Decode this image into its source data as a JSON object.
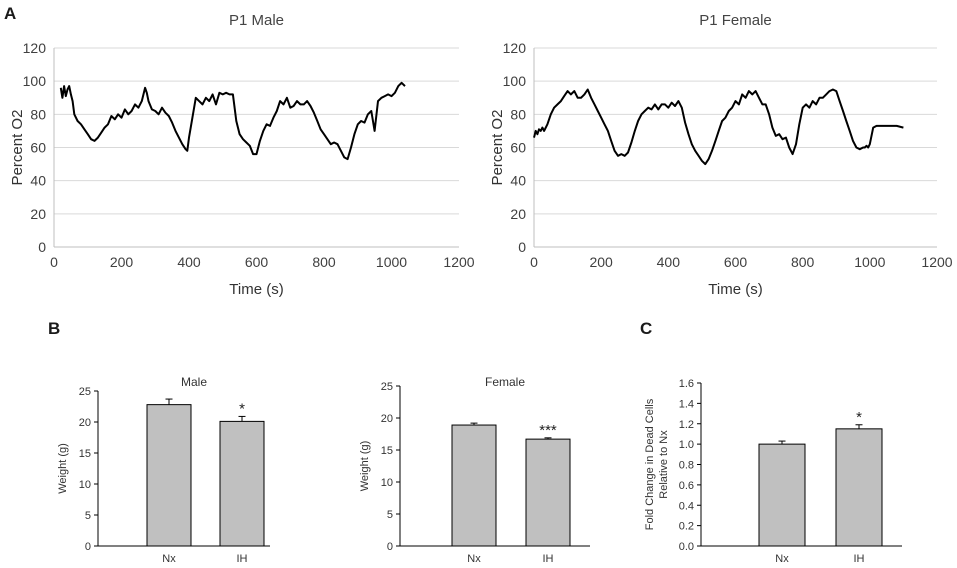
{
  "panels": {
    "A": "A",
    "B": "B",
    "C": "C"
  },
  "chart_data": [
    {
      "id": "p1-male",
      "type": "line",
      "title": "P1 Male",
      "xlabel": "Time (s)",
      "ylabel": "Percent O2",
      "xlim": [
        0,
        1200
      ],
      "ylim": [
        0,
        120
      ],
      "xticks": [
        0,
        200,
        400,
        600,
        800,
        1000,
        1200
      ],
      "yticks": [
        0,
        20,
        40,
        60,
        80,
        100,
        120
      ],
      "grid": true,
      "series": [
        {
          "name": "Percent O2",
          "x": [
            20,
            25,
            30,
            35,
            40,
            45,
            50,
            55,
            60,
            70,
            80,
            90,
            100,
            110,
            120,
            130,
            140,
            150,
            160,
            170,
            180,
            190,
            200,
            210,
            220,
            230,
            240,
            250,
            260,
            270,
            275,
            280,
            290,
            300,
            310,
            320,
            330,
            340,
            350,
            360,
            370,
            380,
            390,
            395,
            400,
            410,
            420,
            430,
            440,
            450,
            460,
            470,
            480,
            490,
            500,
            510,
            520,
            530,
            540,
            550,
            560,
            570,
            580,
            590,
            600,
            610,
            620,
            630,
            640,
            650,
            660,
            670,
            680,
            690,
            700,
            710,
            720,
            730,
            740,
            750,
            760,
            770,
            780,
            790,
            800,
            810,
            820,
            830,
            840,
            850,
            860,
            870,
            880,
            890,
            900,
            910,
            920,
            930,
            940,
            950,
            960,
            970,
            980,
            990,
            1000,
            1010,
            1020,
            1030,
            1040
          ],
          "y": [
            96,
            90,
            97,
            91,
            95,
            97,
            92,
            88,
            80,
            76,
            74,
            71,
            68,
            65,
            64,
            66,
            69,
            72,
            74,
            79,
            77,
            80,
            78,
            83,
            80,
            82,
            86,
            84,
            88,
            96,
            93,
            88,
            83,
            82,
            80,
            84,
            81,
            79,
            75,
            70,
            66,
            62,
            59,
            58,
            66,
            78,
            90,
            88,
            86,
            90,
            88,
            92,
            86,
            93,
            92,
            93,
            92,
            92,
            76,
            68,
            65,
            63,
            61,
            56,
            56,
            64,
            70,
            74,
            73,
            78,
            82,
            88,
            86,
            90,
            84,
            85,
            88,
            86,
            86,
            88,
            85,
            81,
            76,
            71,
            68,
            65,
            62,
            63,
            62,
            58,
            54,
            53,
            60,
            68,
            74,
            76,
            75,
            80,
            82,
            70,
            88,
            90,
            91,
            92,
            91,
            93,
            97,
            99,
            97
          ]
        }
      ]
    },
    {
      "id": "p1-female",
      "type": "line",
      "title": "P1 Female",
      "xlabel": "Time (s)",
      "ylabel": "Percent O2",
      "xlim": [
        0,
        1200
      ],
      "ylim": [
        0,
        120
      ],
      "xticks": [
        0,
        200,
        400,
        600,
        800,
        1000,
        1200
      ],
      "yticks": [
        0,
        20,
        40,
        60,
        80,
        100,
        120
      ],
      "grid": true,
      "series": [
        {
          "name": "Percent O2",
          "x": [
            0,
            5,
            10,
            15,
            20,
            25,
            30,
            40,
            50,
            60,
            70,
            80,
            90,
            100,
            110,
            120,
            130,
            140,
            150,
            160,
            170,
            180,
            190,
            200,
            210,
            220,
            230,
            240,
            250,
            260,
            270,
            280,
            290,
            300,
            310,
            320,
            330,
            340,
            350,
            360,
            370,
            380,
            390,
            400,
            410,
            420,
            430,
            440,
            450,
            460,
            470,
            480,
            490,
            500,
            510,
            520,
            530,
            540,
            550,
            560,
            570,
            580,
            590,
            600,
            610,
            620,
            630,
            640,
            650,
            660,
            670,
            680,
            690,
            700,
            710,
            720,
            730,
            740,
            750,
            760,
            770,
            780,
            790,
            800,
            810,
            820,
            830,
            840,
            850,
            860,
            870,
            880,
            890,
            900,
            910,
            920,
            930,
            940,
            950,
            960,
            970,
            980,
            985,
            990,
            995,
            1000,
            1010,
            1020,
            1050,
            1080,
            1100
          ],
          "y": [
            66,
            70,
            68,
            71,
            70,
            72,
            70,
            74,
            80,
            84,
            86,
            88,
            91,
            94,
            92,
            94,
            90,
            90,
            92,
            95,
            90,
            86,
            82,
            78,
            74,
            70,
            64,
            58,
            55,
            56,
            55,
            57,
            63,
            70,
            76,
            80,
            82,
            84,
            83,
            86,
            83,
            86,
            86,
            84,
            87,
            85,
            88,
            84,
            75,
            68,
            62,
            58,
            55,
            52,
            50,
            53,
            58,
            64,
            70,
            76,
            78,
            82,
            84,
            88,
            86,
            92,
            90,
            94,
            92,
            94,
            90,
            86,
            86,
            80,
            72,
            67,
            68,
            65,
            66,
            60,
            56,
            62,
            74,
            84,
            86,
            84,
            88,
            86,
            90,
            90,
            92,
            94,
            95,
            94,
            88,
            82,
            76,
            70,
            64,
            60,
            59,
            60,
            60,
            61,
            60,
            62,
            72,
            73,
            73,
            73,
            72
          ]
        }
      ]
    },
    {
      "id": "male-weight",
      "type": "bar",
      "title": "Male",
      "ylabel": "Weight (g)",
      "ylim": [
        0,
        25
      ],
      "yticks": [
        0,
        5,
        10,
        15,
        20,
        25
      ],
      "categories": [
        "Nx",
        "IH"
      ],
      "values": [
        22.8,
        20.1
      ],
      "errors": [
        0.9,
        0.8
      ],
      "annotations": [
        "",
        "*"
      ]
    },
    {
      "id": "female-weight",
      "type": "bar",
      "title": "Female",
      "ylabel": "Weight (g)",
      "ylim": [
        0,
        25
      ],
      "yticks": [
        0,
        5,
        10,
        15,
        20,
        25
      ],
      "categories": [
        "Nx",
        "IH"
      ],
      "values": [
        18.9,
        16.7
      ],
      "errors": [
        0.3,
        0.2
      ],
      "annotations": [
        "",
        "***"
      ]
    },
    {
      "id": "dead-cells",
      "type": "bar",
      "title": "",
      "ylabel": "Fold Change in Dead Cells Relative to Nx",
      "ylabel_lines": [
        "Fold Change in Dead Cells",
        "Relative to Nx"
      ],
      "ylim": [
        0,
        1.6
      ],
      "yticks": [
        "0.0",
        "0.2",
        "0.4",
        "0.6",
        "0.8",
        "1.0",
        "1.2",
        "1.4",
        "1.6"
      ],
      "categories": [
        "Nx",
        "IH"
      ],
      "values": [
        1.0,
        1.15
      ],
      "errors": [
        0.03,
        0.04
      ],
      "annotations": [
        "",
        "*"
      ]
    }
  ]
}
